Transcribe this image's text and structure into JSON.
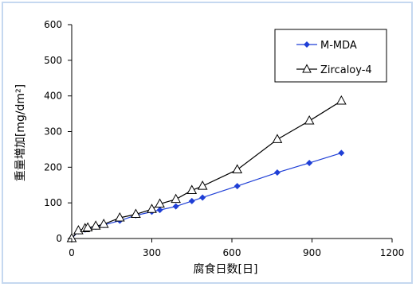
{
  "chart_data": {
    "type": "line",
    "title": "",
    "xlabel": "腐食日数[日]",
    "ylabel": "重量増加[mg/dm²]",
    "xlim": [
      0,
      1200
    ],
    "ylim": [
      0,
      600
    ],
    "xticks": [
      0,
      300,
      600,
      900,
      1200
    ],
    "yticks": [
      0,
      100,
      200,
      300,
      400,
      500,
      600
    ],
    "grid": false,
    "legend_position": "top-right",
    "series": [
      {
        "name": "M-MDA",
        "color": "#1f3fd6",
        "marker": "diamond",
        "x": [
          0,
          25,
          50,
          60,
          90,
          120,
          180,
          240,
          300,
          330,
          390,
          450,
          490,
          620,
          770,
          890,
          1010
        ],
        "y": [
          0,
          20,
          25,
          30,
          33,
          38,
          50,
          65,
          75,
          80,
          90,
          105,
          115,
          147,
          185,
          212,
          240
        ]
      },
      {
        "name": "Zircaloy-4",
        "color": "#000000",
        "marker": "triangle-open",
        "x": [
          0,
          25,
          50,
          60,
          90,
          120,
          180,
          240,
          300,
          330,
          390,
          450,
          490,
          620,
          770,
          890,
          1010
        ],
        "y": [
          0,
          22,
          28,
          30,
          35,
          40,
          58,
          68,
          82,
          97,
          110,
          135,
          147,
          193,
          278,
          330,
          386
        ]
      }
    ]
  }
}
